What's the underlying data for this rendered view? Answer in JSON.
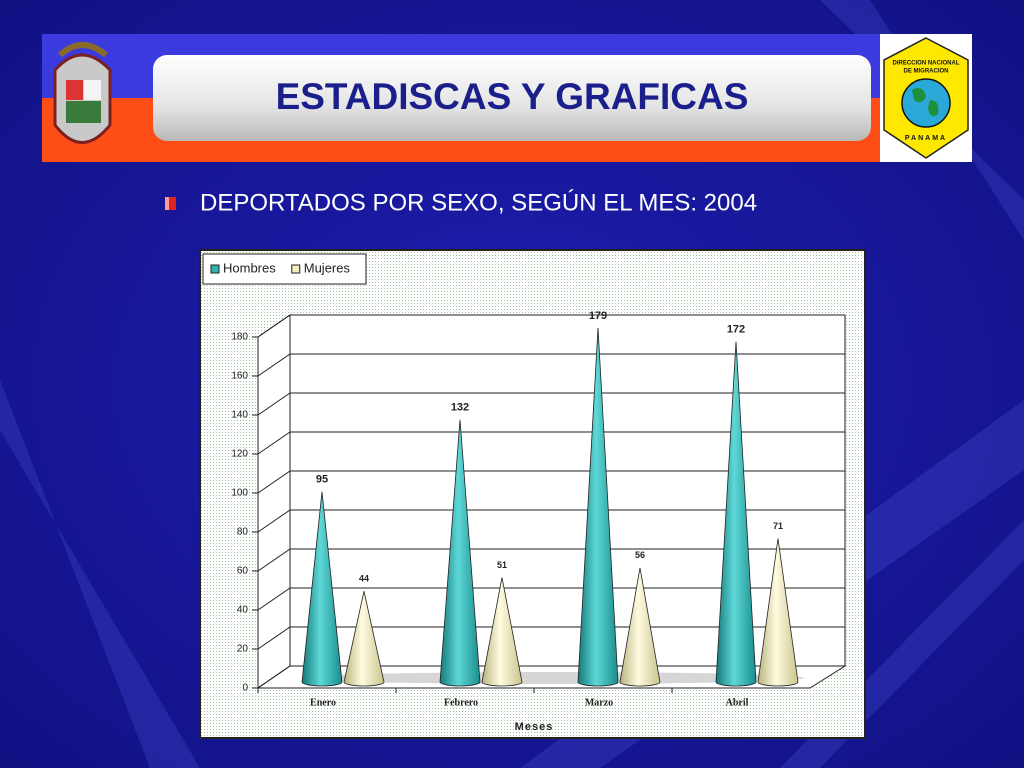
{
  "header": {
    "title": "ESTADISCAS Y GRAFICAS",
    "logo_lines": [
      "DIRECCION NACIONAL",
      "DE MIGRACION",
      "PANAMA"
    ]
  },
  "chart_data": {
    "type": "bar",
    "shape": "cone",
    "title": "DEPORTADOS POR SEXO, SEGÚN EL MES: 2004",
    "x_label": "Meses",
    "categories": [
      "Enero",
      "Febrero",
      "Marzo",
      "Abril"
    ],
    "series": [
      {
        "name": "Hombres",
        "color": "#2fb3b3",
        "values": [
          95,
          132,
          179,
          172
        ]
      },
      {
        "name": "Mujeres",
        "color": "#f3eebc",
        "values": [
          44,
          51,
          56,
          71
        ]
      }
    ],
    "ylim": [
      0,
      180
    ],
    "yticks": [
      0,
      20,
      40,
      60,
      80,
      100,
      120,
      140,
      160,
      180
    ],
    "grid": true,
    "legend": "top-left"
  }
}
